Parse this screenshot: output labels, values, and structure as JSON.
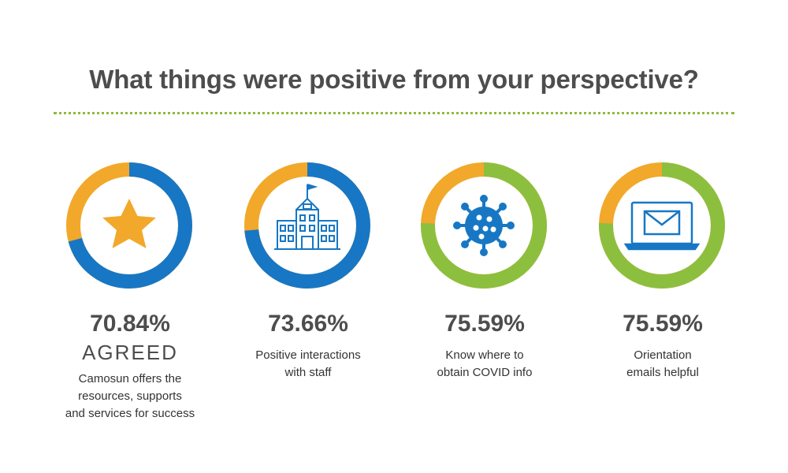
{
  "title": "What things were positive from your perspective?",
  "colors": {
    "blue": "#1777c4",
    "orange": "#f2a82a",
    "green": "#8dbf3f",
    "text": "#4d4d4f",
    "divider": "#8dbb3c"
  },
  "chart_data": [
    {
      "type": "pie",
      "value": 70.84,
      "label": "70.84%",
      "sublabel": "AGREED",
      "description": [
        "Camosun offers the",
        "resources, supports",
        "and services for success"
      ],
      "main_color": "#1777c4",
      "rest_color": "#f2a82a",
      "icon": "star-icon"
    },
    {
      "type": "pie",
      "value": 73.66,
      "label": "73.66%",
      "description": [
        "Positive interactions",
        "with staff"
      ],
      "main_color": "#1777c4",
      "rest_color": "#f2a82a",
      "icon": "building-icon"
    },
    {
      "type": "pie",
      "value": 75.59,
      "label": "75.59%",
      "description": [
        "Know where to",
        "obtain COVID info"
      ],
      "main_color": "#8dbf3f",
      "rest_color": "#f2a82a",
      "icon": "virus-icon"
    },
    {
      "type": "pie",
      "value": 75.59,
      "label": "75.59%",
      "description": [
        "Orientation",
        "emails helpful"
      ],
      "main_color": "#8dbf3f",
      "rest_color": "#f2a82a",
      "icon": "laptop-email-icon"
    }
  ]
}
